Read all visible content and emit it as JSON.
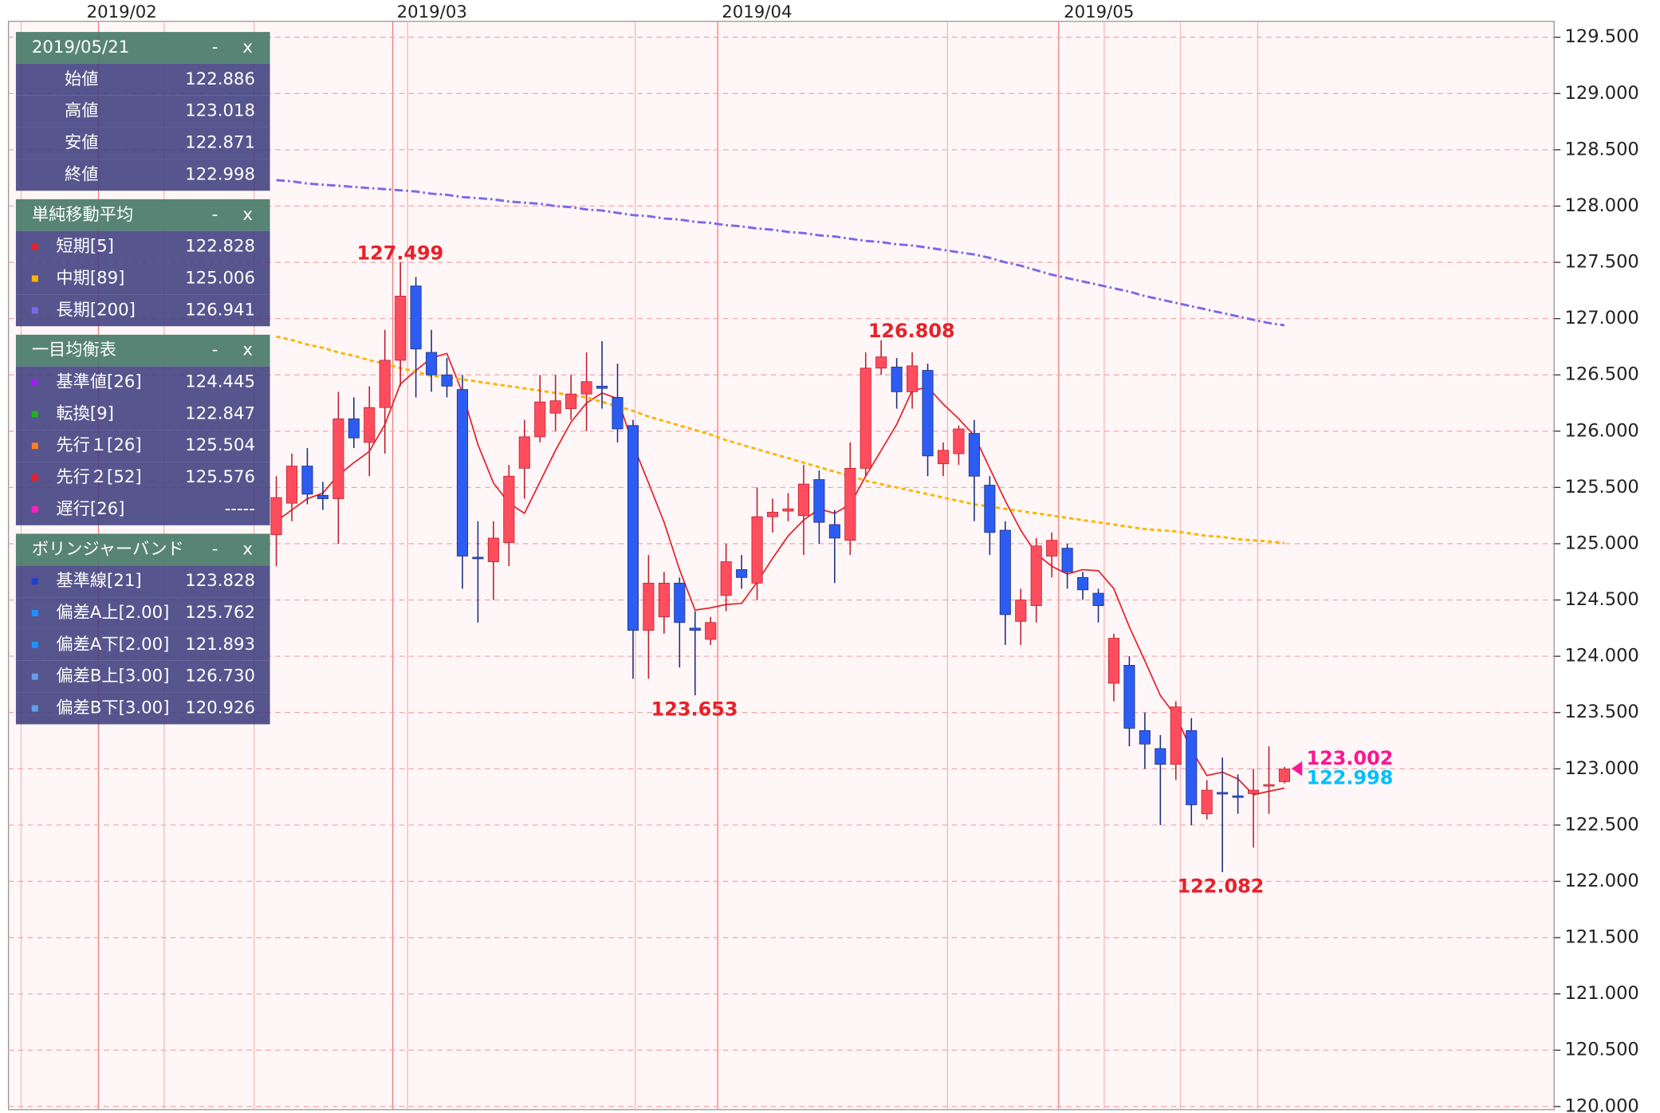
{
  "chart_data": {
    "type": "candlestick",
    "x_labels": [
      "2019/02",
      "2019/03",
      "2019/04",
      "2019/05"
    ],
    "ylim": [
      120,
      129.5
    ],
    "yticks": [
      {
        "value": 129.5,
        "label": "129.500"
      },
      {
        "value": 129,
        "label": "129.000"
      },
      {
        "value": 128.5,
        "label": "128.500"
      },
      {
        "value": 128,
        "label": "128.000"
      },
      {
        "value": 127.5,
        "label": "127.500"
      },
      {
        "value": 127,
        "label": "127.000"
      },
      {
        "value": 126.5,
        "label": "126.500"
      },
      {
        "value": 126,
        "label": "126.000"
      },
      {
        "value": 125.5,
        "label": "125.500"
      },
      {
        "value": 125,
        "label": "125.000"
      },
      {
        "value": 124.5,
        "label": "124.500"
      },
      {
        "value": 124,
        "label": "124.000"
      },
      {
        "value": 123.5,
        "label": "123.500"
      },
      {
        "value": 123,
        "label": "123.000"
      },
      {
        "value": 122.5,
        "label": "122.500"
      },
      {
        "value": 122,
        "label": "122.000"
      },
      {
        "value": 121.5,
        "label": "121.500"
      },
      {
        "value": 121,
        "label": "121.000"
      },
      {
        "value": 120.5,
        "label": "120.500"
      },
      {
        "value": 120,
        "label": "120.000"
      }
    ],
    "grid": true,
    "up_color": "#ff4d5e",
    "down_color": "#2d5cf2",
    "open": [
      125.08,
      125.36,
      125.69,
      125.43,
      125.4,
      126.11,
      125.9,
      126.21,
      126.63,
      127.29,
      126.7,
      126.5,
      126.37,
      124.88,
      124.84,
      125.01,
      125.67,
      125.95,
      126.16,
      126.2,
      126.33,
      126.4,
      126.3,
      126.05,
      124.23,
      124.35,
      124.65,
      124.25,
      124.15,
      124.54,
      124.77,
      124.65,
      125.24,
      125.29,
      125.25,
      125.57,
      125.17,
      125.03,
      125.67,
      126.56,
      126.57,
      126.35,
      126.54,
      125.71,
      125.8,
      125.98,
      125.52,
      125.12,
      124.31,
      124.45,
      124.89,
      124.96,
      124.7,
      124.56,
      123.76,
      123.92,
      123.34,
      123.18,
      123.04,
      123.34,
      122.6,
      122.79,
      122.76,
      122.78,
      122.85,
      122.886
    ],
    "high": [
      125.6,
      125.8,
      125.85,
      125.55,
      126.35,
      126.3,
      126.4,
      126.9,
      127.499,
      127.37,
      126.9,
      126.65,
      126.5,
      125.2,
      125.2,
      125.7,
      126.1,
      126.5,
      126.5,
      126.5,
      126.7,
      126.8,
      126.6,
      126.1,
      124.9,
      124.75,
      124.7,
      124.4,
      124.35,
      125.0,
      124.9,
      125.5,
      125.4,
      125.45,
      125.7,
      125.65,
      125.3,
      125.9,
      126.7,
      126.808,
      126.65,
      126.7,
      126.6,
      125.9,
      126.05,
      126.1,
      125.6,
      125.2,
      124.6,
      125.05,
      125.1,
      125.0,
      124.75,
      124.6,
      124.2,
      124.0,
      123.5,
      123.3,
      123.6,
      123.45,
      122.9,
      123.1,
      122.95,
      123.0,
      123.2,
      123.018
    ],
    "low": [
      124.8,
      125.2,
      125.35,
      125.3,
      125.0,
      125.85,
      125.6,
      125.8,
      126.4,
      126.3,
      126.35,
      126.3,
      124.6,
      124.3,
      124.5,
      124.8,
      125.4,
      125.9,
      126.0,
      126.1,
      126.0,
      126.2,
      125.9,
      123.8,
      123.8,
      124.2,
      123.9,
      123.653,
      124.1,
      124.4,
      124.6,
      124.5,
      125.1,
      125.2,
      124.9,
      125.0,
      124.65,
      124.9,
      125.6,
      126.5,
      126.2,
      126.2,
      125.6,
      125.6,
      125.7,
      125.2,
      124.9,
      124.1,
      124.1,
      124.3,
      124.7,
      124.6,
      124.5,
      124.3,
      123.6,
      123.2,
      123.0,
      122.5,
      122.9,
      122.5,
      122.55,
      122.082,
      122.6,
      122.3,
      122.6,
      122.871
    ],
    "close": [
      125.41,
      125.69,
      125.44,
      125.4,
      126.11,
      125.94,
      126.21,
      126.63,
      127.2,
      126.73,
      126.5,
      126.4,
      124.89,
      124.87,
      125.05,
      125.6,
      125.95,
      126.26,
      126.27,
      126.33,
      126.44,
      126.38,
      126.02,
      124.23,
      124.65,
      124.65,
      124.3,
      124.23,
      124.3,
      124.84,
      124.7,
      125.24,
      125.28,
      125.31,
      125.53,
      125.19,
      125.05,
      125.67,
      126.56,
      126.66,
      126.35,
      126.58,
      125.78,
      125.83,
      126.02,
      125.6,
      125.1,
      124.37,
      124.5,
      124.98,
      125.03,
      124.75,
      124.59,
      124.45,
      124.16,
      123.36,
      123.22,
      123.04,
      123.55,
      122.68,
      122.81,
      122.78,
      122.75,
      122.81,
      122.86,
      122.998
    ],
    "series": [
      {
        "color": "#e8202a",
        "dash": "none",
        "values": [
          125.2,
          125.3,
          125.4,
          125.45,
          125.61,
          125.72,
          125.82,
          126.06,
          126.42,
          126.54,
          126.65,
          126.69,
          126.34,
          125.88,
          125.54,
          125.36,
          125.27,
          125.55,
          125.83,
          126.08,
          126.25,
          126.34,
          126.29,
          125.88,
          125.54,
          125.19,
          124.77,
          124.41,
          124.43,
          124.46,
          124.47,
          124.66,
          124.87,
          125.07,
          125.21,
          125.31,
          125.27,
          125.35,
          125.6,
          125.83,
          126.06,
          126.36,
          126.39,
          126.24,
          126.11,
          125.96,
          125.67,
          125.38,
          125.12,
          124.91,
          124.8,
          124.73,
          124.77,
          124.76,
          124.6,
          124.26,
          123.96,
          123.65,
          123.47,
          123.17,
          122.94,
          122.97,
          122.91,
          122.77,
          122.8,
          122.828
        ]
      },
      {
        "color": "#ffb400",
        "dash": "4 3",
        "values": [
          126.84,
          126.81,
          126.77,
          126.74,
          126.7,
          126.67,
          126.63,
          126.6,
          126.56,
          126.53,
          126.49,
          126.48,
          126.46,
          126.44,
          126.42,
          126.4,
          126.38,
          126.36,
          126.34,
          126.32,
          126.3,
          126.26,
          126.22,
          126.18,
          126.13,
          126.09,
          126.05,
          126.01,
          125.97,
          125.92,
          125.88,
          125.84,
          125.8,
          125.76,
          125.72,
          125.68,
          125.64,
          125.6,
          125.56,
          125.53,
          125.5,
          125.47,
          125.44,
          125.41,
          125.38,
          125.35,
          125.33,
          125.31,
          125.29,
          125.27,
          125.25,
          125.23,
          125.21,
          125.19,
          125.17,
          125.15,
          125.13,
          125.12,
          125.11,
          125.09,
          125.07,
          125.06,
          125.04,
          125.03,
          125.02,
          125.006
        ]
      },
      {
        "color": "#7b68ee",
        "dash": "8 3 2 3",
        "values": [
          128.23,
          128.22,
          128.2,
          128.19,
          128.18,
          128.17,
          128.16,
          128.15,
          128.14,
          128.13,
          128.11,
          128.1,
          128.08,
          128.07,
          128.06,
          128.04,
          128.03,
          128.02,
          128.0,
          127.99,
          127.97,
          127.96,
          127.94,
          127.92,
          127.91,
          127.89,
          127.88,
          127.86,
          127.85,
          127.83,
          127.82,
          127.8,
          127.79,
          127.77,
          127.76,
          127.74,
          127.73,
          127.71,
          127.69,
          127.68,
          127.66,
          127.65,
          127.63,
          127.61,
          127.59,
          127.57,
          127.54,
          127.5,
          127.47,
          127.43,
          127.39,
          127.36,
          127.33,
          127.3,
          127.27,
          127.24,
          127.2,
          127.17,
          127.14,
          127.11,
          127.08,
          127.05,
          127.02,
          126.99,
          126.96,
          126.941
        ]
      }
    ],
    "annotations": [
      {
        "value": 127.499,
        "label": "127.499"
      },
      {
        "value": 126.808,
        "label": "126.808"
      },
      {
        "value": 123.653,
        "label": "123.653"
      },
      {
        "value": 122.082,
        "label": "122.082"
      }
    ],
    "last_prices": [
      {
        "value": 123.002,
        "label": "123.002",
        "color": "#ff1493"
      },
      {
        "value": 122.998,
        "label": "122.998",
        "color": "#00bfff"
      }
    ]
  },
  "info_panel": {
    "date": "2019/05/21",
    "minimize": "-",
    "close": "x",
    "rows": [
      {
        "label": "始値",
        "value": "122.886"
      },
      {
        "label": "高値",
        "value": "123.018"
      },
      {
        "label": "安値",
        "value": "122.871"
      },
      {
        "label": "終値",
        "value": "122.998"
      }
    ],
    "sections": [
      {
        "title": "単純移動平均",
        "minimize": "-",
        "close": "x",
        "rows": [
          {
            "label": "短期[5]",
            "value": "122.828",
            "color": "#e8202a"
          },
          {
            "label": "中期[89]",
            "value": "125.006",
            "color": "#ffb400"
          },
          {
            "label": "長期[200]",
            "value": "126.941",
            "color": "#7b68ee"
          }
        ]
      },
      {
        "title": "一目均衡表",
        "minimize": "-",
        "close": "x",
        "rows": [
          {
            "label": "基準値[26]",
            "value": "124.445",
            "color": "#a020f0"
          },
          {
            "label": "転換[9]",
            "value": "122.847",
            "color": "#20b020"
          },
          {
            "label": "先行１[26]",
            "value": "125.504",
            "color": "#ff7f20"
          },
          {
            "label": "先行２[52]",
            "value": "125.576",
            "color": "#e8202a"
          },
          {
            "label": "遅行[26]",
            "value": "-----",
            "color": "#ff20c0"
          }
        ]
      },
      {
        "title": "ボリンジャーバンド",
        "minimize": "-",
        "close": "x",
        "rows": [
          {
            "label": "基準線[21]",
            "value": "123.828",
            "color": "#2040d0"
          },
          {
            "label": "偏差A上[2.00]",
            "value": "125.762",
            "color": "#1e90ff"
          },
          {
            "label": "偏差A下[2.00]",
            "value": "121.893",
            "color": "#1e90ff"
          },
          {
            "label": "偏差B上[3.00]",
            "value": "126.730",
            "color": "#64a0e8"
          },
          {
            "label": "偏差B下[3.00]",
            "value": "120.926",
            "color": "#64a0e8"
          }
        ]
      }
    ]
  }
}
